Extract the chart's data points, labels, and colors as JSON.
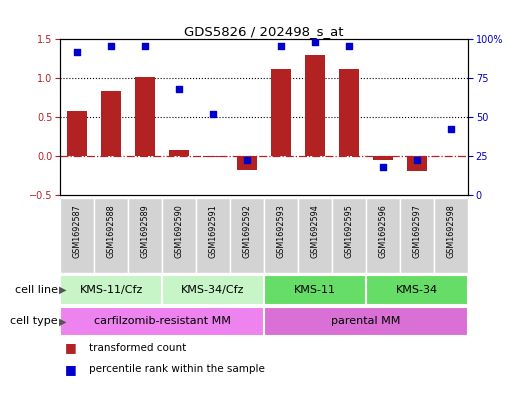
{
  "title": "GDS5826 / 202498_s_at",
  "gsm_labels": [
    "GSM1692587",
    "GSM1692588",
    "GSM1692589",
    "GSM1692590",
    "GSM1692591",
    "GSM1692592",
    "GSM1692593",
    "GSM1692594",
    "GSM1692595",
    "GSM1692596",
    "GSM1692597",
    "GSM1692598"
  ],
  "transformed_count": [
    0.58,
    0.83,
    1.02,
    0.07,
    -0.02,
    -0.18,
    1.12,
    1.3,
    1.12,
    -0.05,
    -0.2,
    0.0
  ],
  "percentile_rank": [
    92,
    96,
    96,
    68,
    52,
    22,
    96,
    98,
    96,
    18,
    22,
    42
  ],
  "bar_color": "#b22222",
  "dot_color": "#0000cd",
  "ylim_left": [
    -0.5,
    1.5
  ],
  "ylim_right": [
    0,
    100
  ],
  "yticks_left": [
    -0.5,
    0.0,
    0.5,
    1.0,
    1.5
  ],
  "yticks_right": [
    0,
    25,
    50,
    75,
    100
  ],
  "hlines": [
    0.5,
    1.0
  ],
  "zero_line_color": "#b22222",
  "cell_line_groups": [
    {
      "label": "KMS-11/Cfz",
      "start": 0,
      "end": 3,
      "color": "#c8f5c8"
    },
    {
      "label": "KMS-34/Cfz",
      "start": 3,
      "end": 6,
      "color": "#c8f5c8"
    },
    {
      "label": "KMS-11",
      "start": 6,
      "end": 9,
      "color": "#66dd66"
    },
    {
      "label": "KMS-34",
      "start": 9,
      "end": 12,
      "color": "#66dd66"
    }
  ],
  "cell_type_groups": [
    {
      "label": "carfilzomib-resistant MM",
      "start": 0,
      "end": 6,
      "color": "#ee82ee"
    },
    {
      "label": "parental MM",
      "start": 6,
      "end": 12,
      "color": "#da70d6"
    }
  ],
  "legend_items": [
    {
      "label": "transformed count",
      "color": "#b22222"
    },
    {
      "label": "percentile rank within the sample",
      "color": "#0000cd"
    }
  ],
  "cell_line_label": "cell line",
  "cell_type_label": "cell type",
  "bg_color_gsm": "#d3d3d3",
  "bar_width": 0.6
}
